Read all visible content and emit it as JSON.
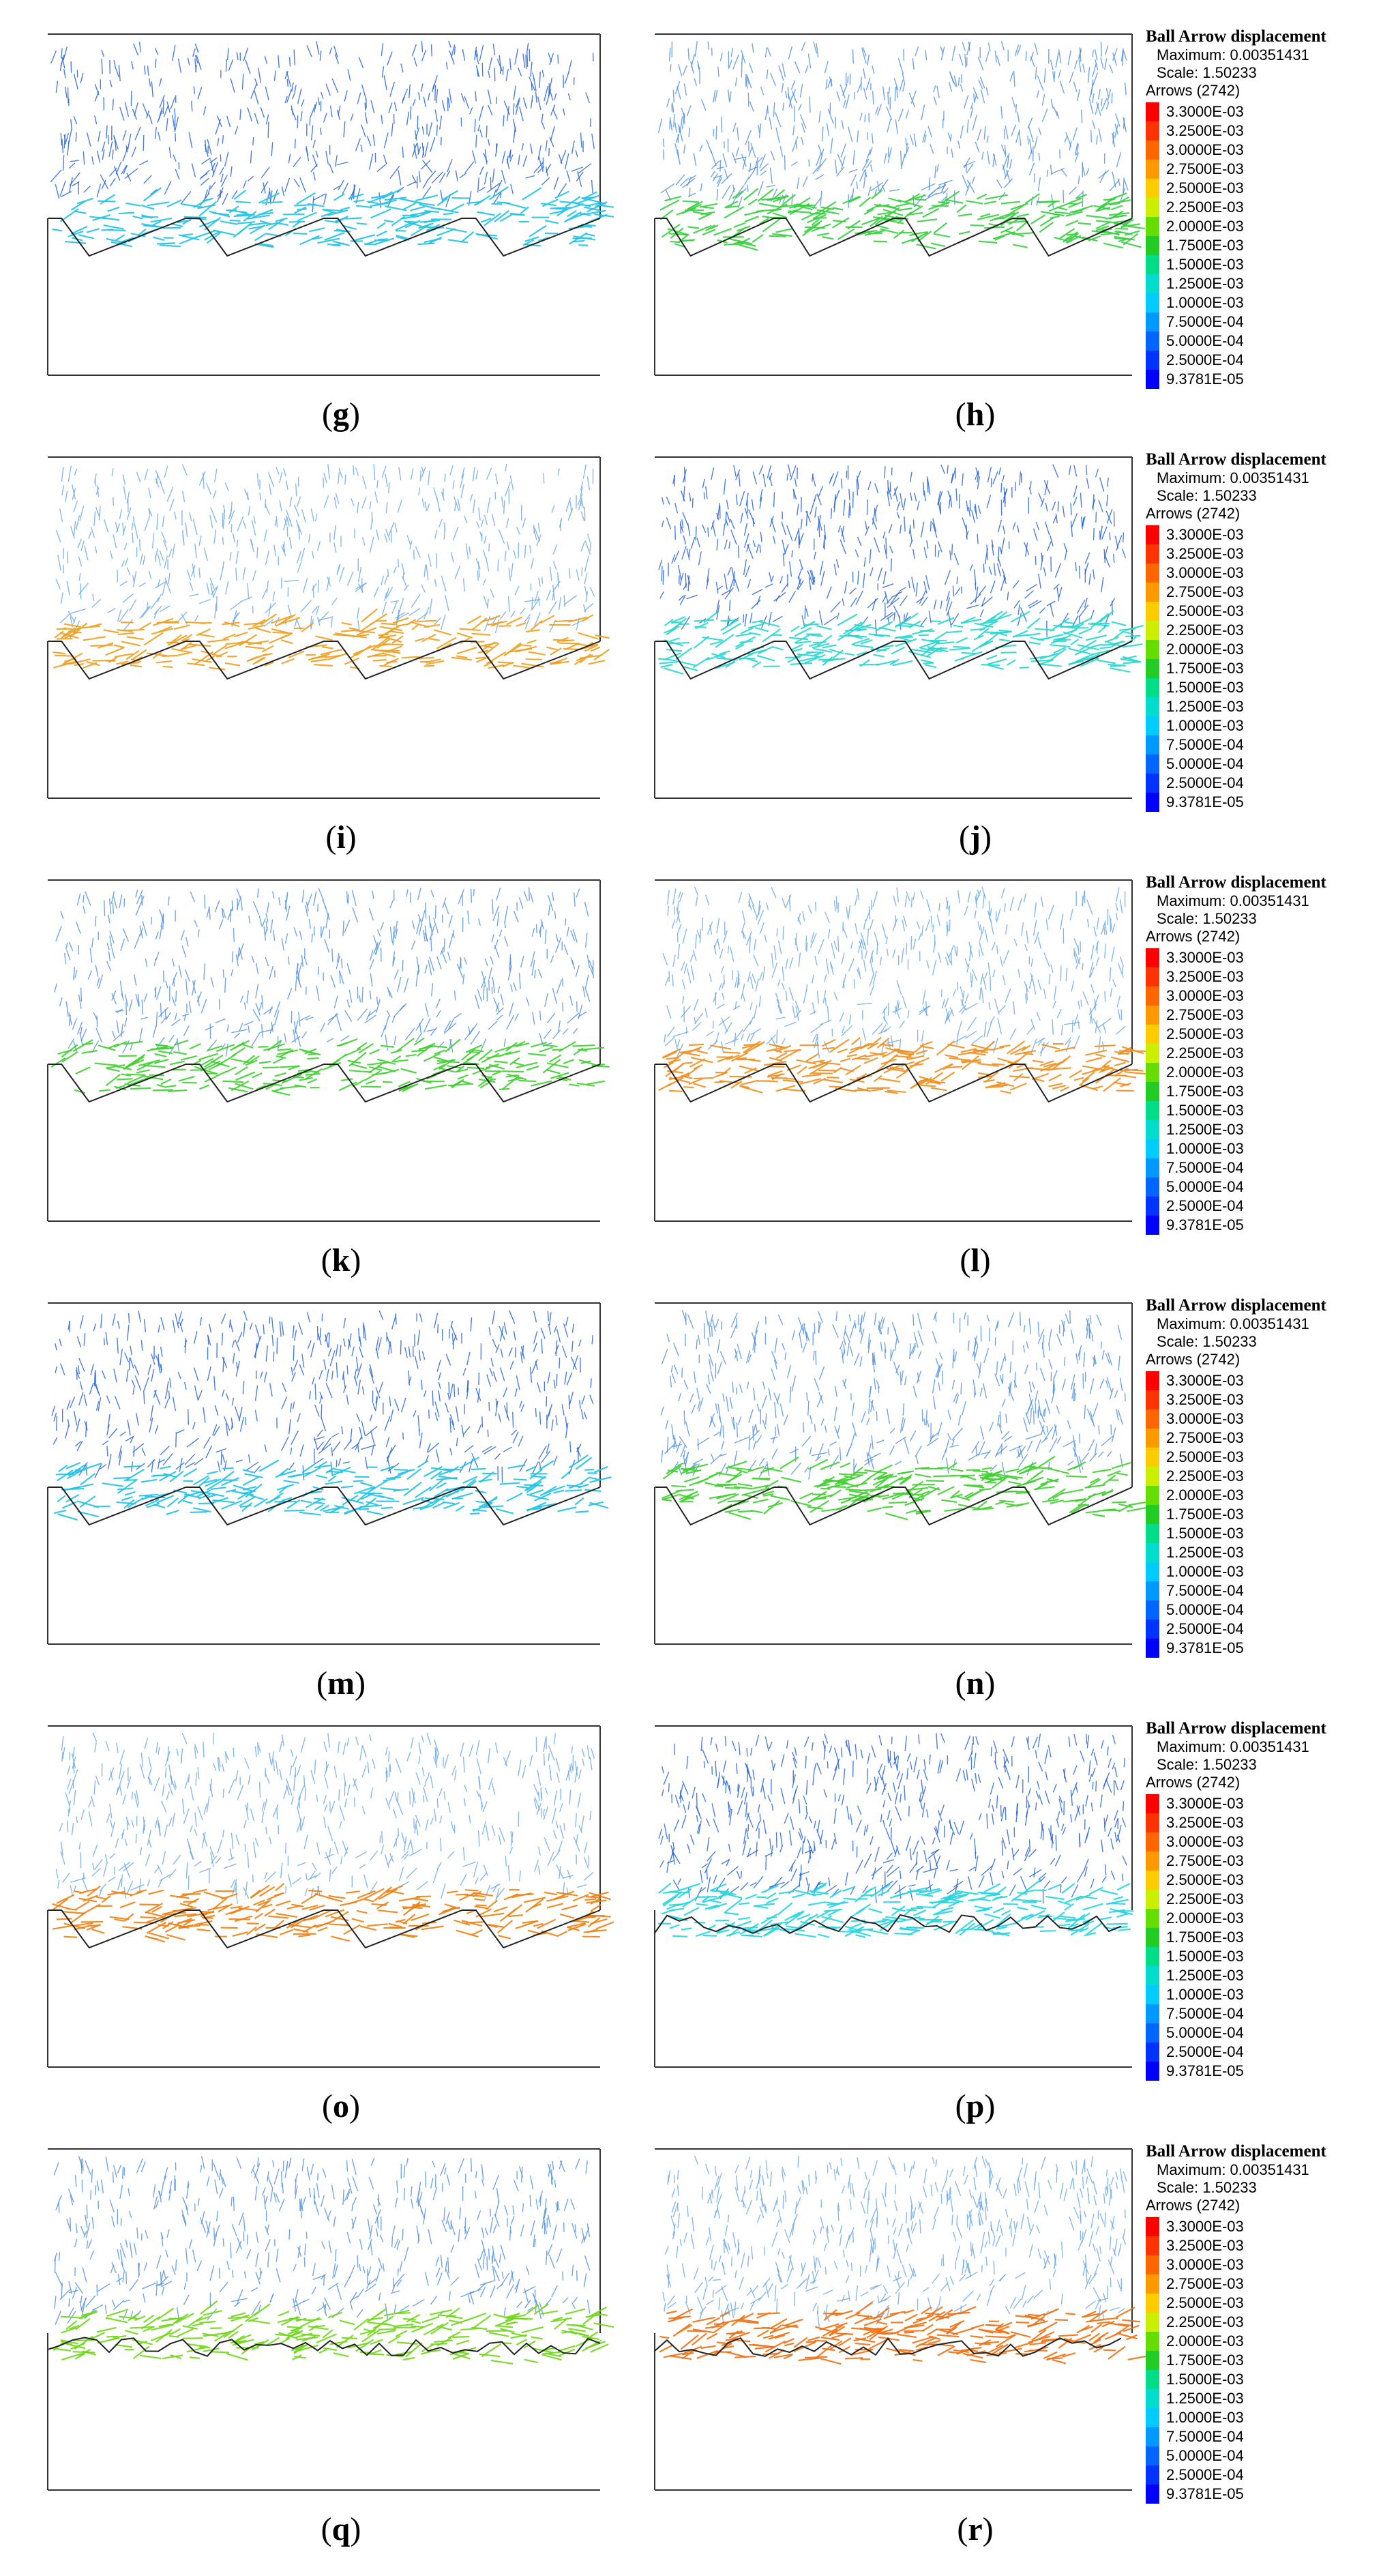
{
  "figure": {
    "panels": [
      {
        "label": "g",
        "legend": false
      },
      {
        "label": "h",
        "legend": true
      },
      {
        "label": "i",
        "legend": false
      },
      {
        "label": "j",
        "legend": true
      },
      {
        "label": "k",
        "legend": false
      },
      {
        "label": "l",
        "legend": true
      },
      {
        "label": "m",
        "legend": false
      },
      {
        "label": "n",
        "legend": true
      },
      {
        "label": "o",
        "legend": false
      },
      {
        "label": "p",
        "legend": true
      },
      {
        "label": "q",
        "legend": false
      },
      {
        "label": "r",
        "legend": true
      }
    ],
    "caption_open": "(",
    "caption_close": ")"
  },
  "legend": {
    "title": "Ball Arrow displacement",
    "maximum": "Maximum: 0.00351431",
    "scale": "Scale: 1.50233",
    "arrows": "Arrows (2742)",
    "levels": [
      {
        "value": "3.3000E-03",
        "color": "#ff0000"
      },
      {
        "value": "3.2500E-03",
        "color": "#ff3300"
      },
      {
        "value": "3.0000E-03",
        "color": "#ff6600"
      },
      {
        "value": "2.7500E-03",
        "color": "#ff9900"
      },
      {
        "value": "2.5000E-03",
        "color": "#ffcc00"
      },
      {
        "value": "2.2500E-03",
        "color": "#ccee00"
      },
      {
        "value": "2.0000E-03",
        "color": "#66dd00"
      },
      {
        "value": "1.7500E-03",
        "color": "#22cc22"
      },
      {
        "value": "1.5000E-03",
        "color": "#00dd88"
      },
      {
        "value": "1.2500E-03",
        "color": "#00ddcc"
      },
      {
        "value": "1.0000E-03",
        "color": "#00ccff"
      },
      {
        "value": "7.5000E-04",
        "color": "#0099ff"
      },
      {
        "value": "5.0000E-04",
        "color": "#0066ff"
      },
      {
        "value": "2.5000E-04",
        "color": "#0033ff"
      },
      {
        "value": "9.3781E-05",
        "color": "#0000ff"
      }
    ]
  },
  "panel_styles": {
    "g": {
      "top": "#1f5fd6",
      "band": "#22c3e6",
      "teeth": "sawtooth"
    },
    "h": {
      "top": "#4f8fe0",
      "band": "#38d040",
      "teeth": "sawtooth"
    },
    "i": {
      "top": "#6aa7e8",
      "band": "#f0a020",
      "teeth": "sawtooth"
    },
    "j": {
      "top": "#1f5fd6",
      "band": "#2ad6d0",
      "teeth": "sawtooth"
    },
    "k": {
      "top": "#4f8fe0",
      "band": "#40d030",
      "teeth": "sawtooth"
    },
    "l": {
      "top": "#6aa7e8",
      "band": "#f09020",
      "teeth": "sawtooth"
    },
    "m": {
      "top": "#1f5fd6",
      "band": "#22c3e6",
      "teeth": "sawtooth"
    },
    "n": {
      "top": "#4f8fe0",
      "band": "#40d030",
      "teeth": "sawtooth"
    },
    "o": {
      "top": "#6aa7e8",
      "band": "#f08010",
      "teeth": "sawtooth"
    },
    "p": {
      "top": "#1f5fd6",
      "band": "#22d6e0",
      "teeth": "rough"
    },
    "q": {
      "top": "#4f8fe0",
      "band": "#70d818",
      "teeth": "rough"
    },
    "r": {
      "top": "#6aa7e8",
      "band": "#f07010",
      "teeth": "rough"
    }
  }
}
